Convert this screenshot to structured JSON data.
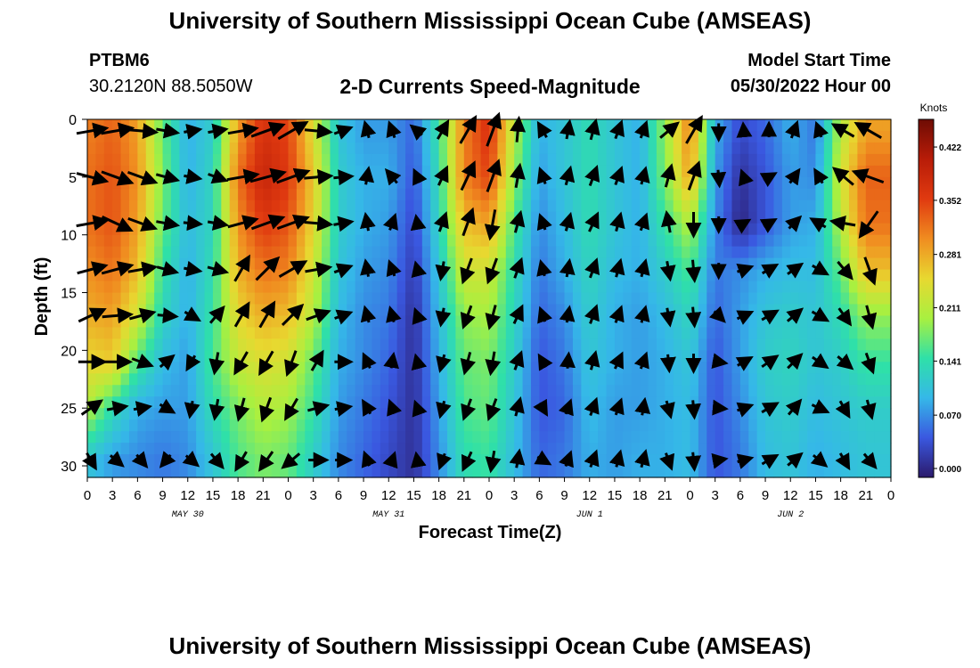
{
  "header": {
    "title": "University of Southern Mississippi Ocean Cube (AMSEAS)",
    "station": "PTBM6",
    "coordinates": "30.2120N  88.5050W",
    "plot_title": "2-D Currents Speed-Magnitude",
    "start_label": "Model Start Time",
    "start_value": "05/30/2022 Hour 00"
  },
  "footer": {
    "title": "University of Southern Mississippi Ocean Cube (AMSEAS)"
  },
  "chart_data": {
    "type": "heatmap",
    "title": "2-D Currents Speed-Magnitude",
    "xlabel": "Forecast Time(Z)",
    "ylabel": "Depth (ft)",
    "xlim": [
      0,
      96
    ],
    "ylim": [
      31,
      0
    ],
    "x_tick_labels": [
      "0",
      "3",
      "6",
      "9",
      "12",
      "15",
      "18",
      "21",
      "0",
      "3",
      "6",
      "9",
      "12",
      "15",
      "18",
      "21",
      "0",
      "3",
      "6",
      "9",
      "12",
      "15",
      "18",
      "21",
      "0",
      "3",
      "6",
      "9",
      "12",
      "15",
      "18",
      "21",
      "0"
    ],
    "y_ticks": [
      0,
      5,
      10,
      15,
      20,
      25,
      30
    ],
    "date_labels": [
      {
        "hour": 12,
        "label": "MAY 30"
      },
      {
        "hour": 36,
        "label": "MAY 31"
      },
      {
        "hour": 60,
        "label": "JUN 1"
      },
      {
        "hour": 84,
        "label": "JUN 2"
      }
    ],
    "colorbar": {
      "unit": "Knots",
      "ticks": [
        "0.000",
        "0.070",
        "0.141",
        "0.211",
        "0.281",
        "0.352",
        "0.422"
      ],
      "range": [
        0,
        0.47
      ]
    },
    "colormap": [
      "#2b1a6b",
      "#3a58e0",
      "#35b8e8",
      "#2fe0a8",
      "#a8f040",
      "#e8d830",
      "#f08c20",
      "#e03a10",
      "#b81c08",
      "#6e0c04"
    ],
    "depths_ft": [
      1,
      5,
      9,
      13,
      17,
      21,
      25,
      29.5
    ],
    "vector_hours": [
      0,
      3,
      6,
      9,
      12,
      15,
      18,
      21,
      24,
      27,
      30,
      33,
      36,
      39,
      42,
      45,
      48,
      51,
      54,
      57,
      60,
      63,
      66,
      69,
      72,
      75,
      78,
      81,
      84,
      87,
      90,
      93
    ],
    "speed_profiles_knots": [
      [
        0.32,
        0.33,
        0.33,
        0.31,
        0.29,
        0.26,
        0.22,
        0.12
      ],
      [
        0.34,
        0.35,
        0.35,
        0.33,
        0.3,
        0.27,
        0.15,
        0.09
      ],
      [
        0.3,
        0.31,
        0.3,
        0.28,
        0.24,
        0.17,
        0.1,
        0.08
      ],
      [
        0.18,
        0.19,
        0.18,
        0.16,
        0.14,
        0.11,
        0.09,
        0.07
      ],
      [
        0.1,
        0.1,
        0.11,
        0.1,
        0.1,
        0.09,
        0.09,
        0.08
      ],
      [
        0.13,
        0.14,
        0.14,
        0.15,
        0.16,
        0.17,
        0.15,
        0.12
      ],
      [
        0.3,
        0.33,
        0.31,
        0.29,
        0.26,
        0.23,
        0.19,
        0.17
      ],
      [
        0.38,
        0.4,
        0.37,
        0.33,
        0.29,
        0.25,
        0.22,
        0.19
      ],
      [
        0.36,
        0.37,
        0.35,
        0.32,
        0.28,
        0.24,
        0.21,
        0.18
      ],
      [
        0.25,
        0.27,
        0.26,
        0.24,
        0.22,
        0.18,
        0.16,
        0.13
      ],
      [
        0.12,
        0.13,
        0.13,
        0.12,
        0.11,
        0.1,
        0.09,
        0.08
      ],
      [
        0.09,
        0.1,
        0.1,
        0.09,
        0.08,
        0.08,
        0.07,
        0.06
      ],
      [
        0.09,
        0.1,
        0.09,
        0.08,
        0.07,
        0.06,
        0.05,
        0.04
      ],
      [
        0.06,
        0.05,
        0.04,
        0.03,
        0.02,
        0.02,
        0.02,
        0.02
      ],
      [
        0.16,
        0.15,
        0.14,
        0.12,
        0.11,
        0.1,
        0.09,
        0.08
      ],
      [
        0.32,
        0.32,
        0.28,
        0.24,
        0.2,
        0.18,
        0.17,
        0.15
      ],
      [
        0.38,
        0.36,
        0.3,
        0.24,
        0.21,
        0.19,
        0.18,
        0.16
      ],
      [
        0.22,
        0.2,
        0.17,
        0.15,
        0.14,
        0.13,
        0.12,
        0.11
      ],
      [
        0.1,
        0.09,
        0.08,
        0.07,
        0.06,
        0.05,
        0.05,
        0.06
      ],
      [
        0.12,
        0.12,
        0.11,
        0.1,
        0.08,
        0.07,
        0.06,
        0.07
      ],
      [
        0.15,
        0.15,
        0.15,
        0.14,
        0.13,
        0.12,
        0.11,
        0.1
      ],
      [
        0.12,
        0.12,
        0.12,
        0.11,
        0.1,
        0.1,
        0.09,
        0.09
      ],
      [
        0.1,
        0.1,
        0.1,
        0.1,
        0.09,
        0.09,
        0.09,
        0.1
      ],
      [
        0.2,
        0.19,
        0.16,
        0.13,
        0.11,
        0.1,
        0.1,
        0.1
      ],
      [
        0.32,
        0.3,
        0.22,
        0.17,
        0.14,
        0.12,
        0.11,
        0.11
      ],
      [
        0.1,
        0.09,
        0.08,
        0.07,
        0.06,
        0.05,
        0.05,
        0.05
      ],
      [
        0.04,
        0.02,
        0.01,
        0.08,
        0.09,
        0.09,
        0.08,
        0.07
      ],
      [
        0.06,
        0.05,
        0.05,
        0.1,
        0.12,
        0.13,
        0.12,
        0.11
      ],
      [
        0.1,
        0.09,
        0.09,
        0.11,
        0.13,
        0.14,
        0.13,
        0.12
      ],
      [
        0.07,
        0.08,
        0.1,
        0.11,
        0.12,
        0.12,
        0.11,
        0.1
      ],
      [
        0.22,
        0.24,
        0.22,
        0.18,
        0.15,
        0.13,
        0.12,
        0.11
      ],
      [
        0.3,
        0.34,
        0.33,
        0.28,
        0.2,
        0.16,
        0.13,
        0.12
      ]
    ],
    "direction_profiles_deg": [
      [
        80,
        105,
        80,
        75,
        65,
        90,
        55,
        150
      ],
      [
        80,
        110,
        115,
        75,
        85,
        90,
        80,
        130
      ],
      [
        95,
        110,
        110,
        80,
        75,
        110,
        80,
        140
      ],
      [
        100,
        105,
        100,
        105,
        95,
        50,
        120,
        220
      ],
      [
        80,
        100,
        95,
        100,
        120,
        210,
        190,
        130
      ],
      [
        80,
        110,
        100,
        105,
        40,
        190,
        190,
        140
      ],
      [
        80,
        80,
        75,
        30,
        30,
        210,
        195,
        210
      ],
      [
        70,
        75,
        70,
        45,
        30,
        210,
        200,
        215
      ],
      [
        60,
        70,
        70,
        60,
        45,
        200,
        210,
        230
      ],
      [
        95,
        85,
        95,
        80,
        70,
        30,
        75,
        90
      ],
      [
        70,
        85,
        80,
        70,
        70,
        90,
        80,
        90
      ],
      [
        345,
        10,
        350,
        350,
        345,
        335,
        330,
        340
      ],
      [
        340,
        320,
        20,
        340,
        345,
        10,
        340,
        20
      ],
      [
        310,
        335,
        350,
        345,
        340,
        345,
        340,
        350
      ],
      [
        30,
        25,
        20,
        190,
        190,
        195,
        195,
        200
      ],
      [
        30,
        25,
        20,
        200,
        200,
        195,
        200,
        205
      ],
      [
        20,
        20,
        190,
        200,
        195,
        190,
        200,
        190
      ],
      [
        5,
        10,
        15,
        20,
        25,
        20,
        15,
        10
      ],
      [
        330,
        340,
        340,
        345,
        340,
        330,
        150,
        120
      ],
      [
        10,
        15,
        15,
        10,
        10,
        5,
        20,
        20
      ],
      [
        15,
        20,
        25,
        20,
        20,
        15,
        20,
        20
      ],
      [
        20,
        20,
        15,
        15,
        20,
        25,
        20,
        15
      ],
      [
        20,
        15,
        20,
        15,
        15,
        20,
        10,
        15
      ],
      [
        50,
        15,
        350,
        170,
        170,
        175,
        165,
        160
      ],
      [
        30,
        20,
        180,
        175,
        175,
        180,
        175,
        175
      ],
      [
        180,
        175,
        180,
        180,
        135,
        100,
        95,
        80
      ],
      [
        355,
        340,
        60,
        70,
        65,
        60,
        70,
        75
      ],
      [
        0,
        60,
        60,
        60,
        60,
        55,
        60,
        60
      ],
      [
        20,
        35,
        45,
        55,
        50,
        45,
        40,
        50
      ],
      [
        340,
        330,
        300,
        120,
        120,
        125,
        115,
        130
      ],
      [
        300,
        310,
        280,
        140,
        145,
        130,
        150,
        150
      ],
      [
        300,
        290,
        215,
        160,
        165,
        160,
        165,
        140
      ]
    ]
  }
}
